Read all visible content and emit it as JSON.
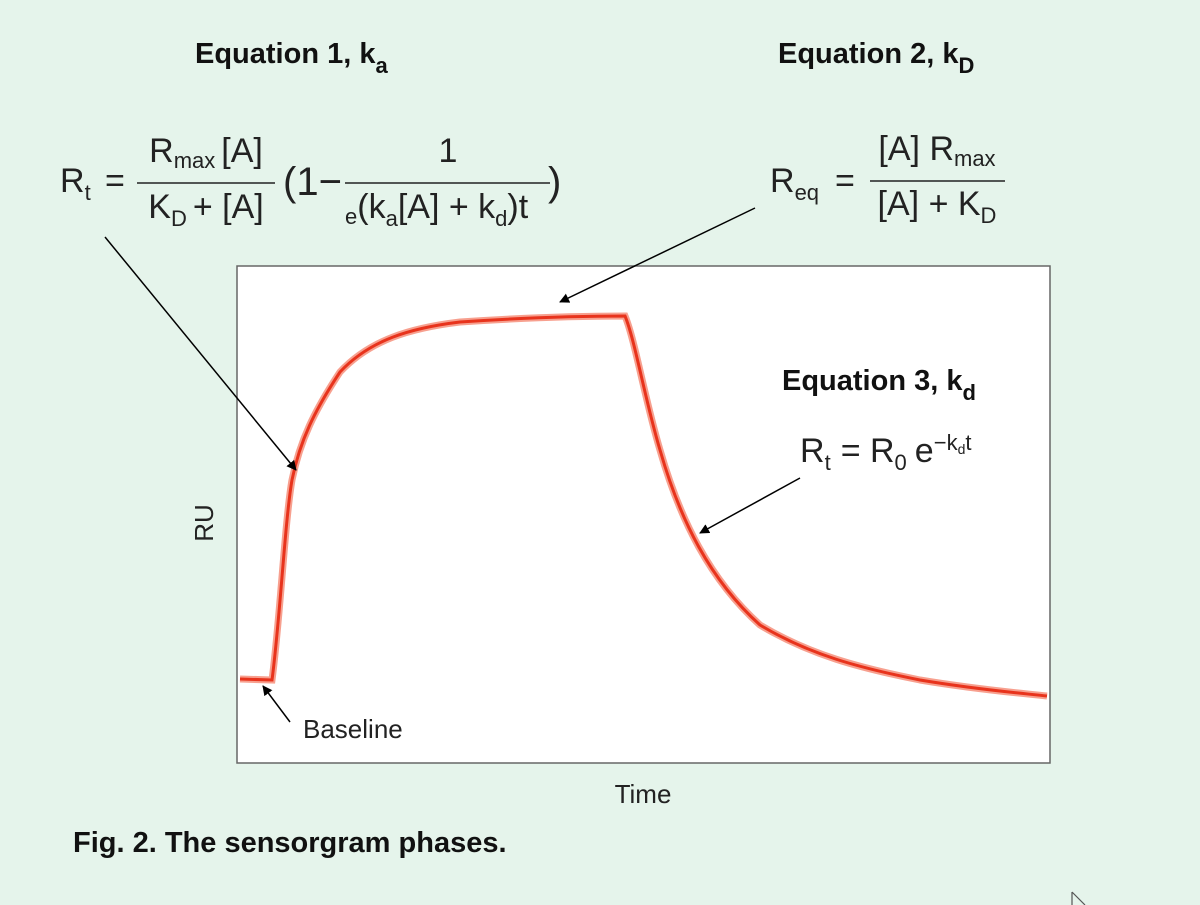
{
  "equation_1": {
    "heading": "Equation 1, k",
    "heading_subscript": "a",
    "lhs": [
      "R",
      "t"
    ],
    "equals": "=",
    "numerator": [
      "R",
      "max",
      "[A]"
    ],
    "denominator": [
      "K",
      "D",
      "+ [A]"
    ],
    "bracket_open": "(1−",
    "inner_numerator": "1",
    "inner_denominator": [
      "e",
      "(k",
      "a",
      "[A] + k",
      "d",
      ")t"
    ],
    "bracket_close": ")"
  },
  "equation_2": {
    "heading": "Equation 2, k",
    "heading_subscript": "D",
    "lhs": [
      "R",
      "eq"
    ],
    "equals": "=",
    "numerator": [
      "[A] R",
      "max"
    ],
    "denominator": [
      "[A] + K",
      "D"
    ]
  },
  "equation_3": {
    "heading": "Equation 3, k",
    "heading_subscript": "d",
    "formula": [
      "R",
      "t",
      "= R",
      "0",
      "e",
      "−k",
      "d",
      "t"
    ]
  },
  "axes": {
    "y_label": "RU",
    "x_label": "Time"
  },
  "annotation": "Baseline",
  "caption": "Fig. 2. The sensorgram phases."
}
